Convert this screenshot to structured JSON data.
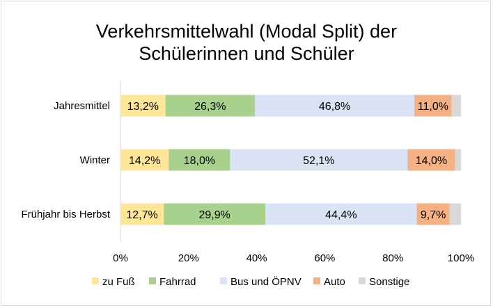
{
  "chart_data": {
    "type": "bar",
    "orientation": "horizontal",
    "stacked": true,
    "title_lines": [
      "Verkehrsmittelwahl (Modal Split) der",
      "Schülerinnen und Schüler"
    ],
    "categories": [
      "Jahresmittel",
      "Winter",
      "Frühjahr bis Herbst"
    ],
    "series": [
      {
        "name": "zu Fuß",
        "color": "#FFE699",
        "values": [
          13.2,
          14.2,
          12.7
        ]
      },
      {
        "name": "Fahrrad",
        "color": "#A9D18E",
        "values": [
          26.3,
          18.0,
          29.9
        ]
      },
      {
        "name": "Bus und ÖPNV",
        "color": "#DAE3F3",
        "values": [
          46.8,
          52.1,
          44.4
        ]
      },
      {
        "name": "Auto",
        "color": "#F4B183",
        "values": [
          11.0,
          14.0,
          9.7
        ]
      },
      {
        "name": "Sonstige",
        "color": "#D9D9D9",
        "values": [
          2.7,
          1.7,
          3.3
        ]
      }
    ],
    "data_labels": [
      [
        "13,2%",
        "26,3%",
        "46,8%",
        "11,0%",
        ""
      ],
      [
        "14,2%",
        "18,0%",
        "52,1%",
        "14,0%",
        ""
      ],
      [
        "12,7%",
        "29,9%",
        "44,4%",
        "9,7%",
        ""
      ]
    ],
    "xlim": [
      0,
      100
    ],
    "x_ticks": [
      "0%",
      "20%",
      "40%",
      "60%",
      "80%",
      "100%"
    ],
    "grid": false,
    "legend_position": "bottom"
  }
}
